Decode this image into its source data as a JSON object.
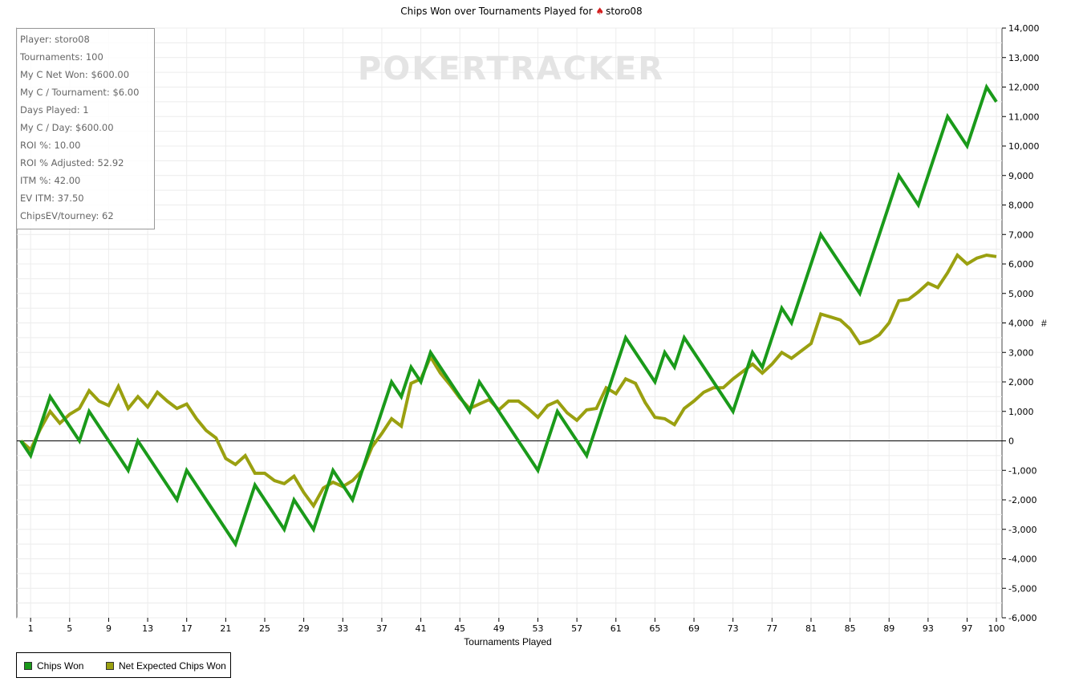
{
  "title_text": "Chips Won over Tournaments Played for",
  "title_player": "storo08",
  "watermark": "POKERTRACKER",
  "stats": [
    "Player: storo08",
    "Tournaments: 100",
    "My C Net Won: $600.00",
    "My C / Tournament: $6.00",
    "Days Played: 1",
    "My C / Day: $600.00",
    "ROI %: 10.00",
    "ROI % Adjusted: 52.92",
    "ITM %: 42.00",
    "EV ITM: 37.50",
    "ChipsEV/tourney: 62"
  ],
  "legend": [
    {
      "label": "Chips Won",
      "color": "#1a9a1a"
    },
    {
      "label": "Net Expected Chips Won",
      "color": "#9aa010"
    }
  ],
  "chart_data": {
    "type": "line",
    "title": "Chips Won over Tournaments Played for storo08",
    "xlabel": "Tournaments Played",
    "ylabel": "#",
    "xlim": [
      0,
      100
    ],
    "ylim": [
      -6000,
      14000
    ],
    "x_ticks": [
      1,
      5,
      9,
      13,
      17,
      21,
      25,
      29,
      33,
      37,
      41,
      45,
      49,
      53,
      57,
      61,
      65,
      69,
      73,
      77,
      81,
      85,
      89,
      93,
      97,
      100
    ],
    "y_ticks": [
      -6000,
      -5000,
      -4000,
      -3000,
      -2000,
      -1000,
      0,
      1000,
      2000,
      3000,
      4000,
      5000,
      6000,
      7000,
      8000,
      9000,
      10000,
      11000,
      12000,
      13000,
      14000
    ],
    "y_tick_labels": [
      "-6,000",
      "-5,000",
      "-4,000",
      "-3,000",
      "-2,000",
      "-1,000",
      "0",
      "1,000",
      "2,000",
      "3,000",
      "4,000",
      "5,000",
      "6,000",
      "7,000",
      "8,000",
      "9,000",
      "10,000",
      "11,000",
      "12,000",
      "13,000",
      "14,000"
    ],
    "grid": true,
    "legend_position": "bottom-left",
    "series": [
      {
        "name": "Chips Won",
        "color": "#1a9a1a",
        "points": [
          [
            0,
            0
          ],
          [
            1,
            -500
          ],
          [
            3,
            1500
          ],
          [
            6,
            0
          ],
          [
            7,
            1000
          ],
          [
            11,
            -1000
          ],
          [
            12,
            0
          ],
          [
            16,
            -2000
          ],
          [
            17,
            -1000
          ],
          [
            22,
            -3500
          ],
          [
            24,
            -1500
          ],
          [
            27,
            -3000
          ],
          [
            28,
            -2000
          ],
          [
            30,
            -3000
          ],
          [
            32,
            -1000
          ],
          [
            33,
            -1500
          ],
          [
            34,
            -2000
          ],
          [
            38,
            2000
          ],
          [
            39,
            1500
          ],
          [
            40,
            2500
          ],
          [
            41,
            2000
          ],
          [
            42,
            3000
          ],
          [
            46,
            1000
          ],
          [
            47,
            2000
          ],
          [
            53,
            -1000
          ],
          [
            55,
            1000
          ],
          [
            58,
            -500
          ],
          [
            62,
            3500
          ],
          [
            65,
            2000
          ],
          [
            66,
            3000
          ],
          [
            67,
            2500
          ],
          [
            68,
            3500
          ],
          [
            73,
            1000
          ],
          [
            75,
            3000
          ],
          [
            76,
            2500
          ],
          [
            78,
            4500
          ],
          [
            79,
            4000
          ],
          [
            82,
            7000
          ],
          [
            86,
            5000
          ],
          [
            90,
            9000
          ],
          [
            92,
            8000
          ],
          [
            95,
            11000
          ],
          [
            97,
            10000
          ],
          [
            99,
            12000
          ],
          [
            100,
            11500
          ]
        ]
      },
      {
        "name": "Net Expected Chips Won",
        "color": "#9aa010",
        "points": [
          [
            0,
            0
          ],
          [
            1,
            -300
          ],
          [
            2,
            400
          ],
          [
            3,
            1000
          ],
          [
            4,
            600
          ],
          [
            5,
            900
          ],
          [
            6,
            1100
          ],
          [
            7,
            1700
          ],
          [
            8,
            1350
          ],
          [
            9,
            1200
          ],
          [
            10,
            1850
          ],
          [
            11,
            1100
          ],
          [
            12,
            1500
          ],
          [
            13,
            1150
          ],
          [
            14,
            1650
          ],
          [
            15,
            1350
          ],
          [
            16,
            1100
          ],
          [
            17,
            1250
          ],
          [
            18,
            750
          ],
          [
            19,
            350
          ],
          [
            20,
            100
          ],
          [
            21,
            -600
          ],
          [
            22,
            -800
          ],
          [
            23,
            -500
          ],
          [
            24,
            -1100
          ],
          [
            25,
            -1100
          ],
          [
            26,
            -1350
          ],
          [
            27,
            -1450
          ],
          [
            28,
            -1200
          ],
          [
            29,
            -1750
          ],
          [
            30,
            -2200
          ],
          [
            31,
            -1600
          ],
          [
            32,
            -1400
          ],
          [
            33,
            -1550
          ],
          [
            34,
            -1350
          ],
          [
            35,
            -1000
          ],
          [
            36,
            -200
          ],
          [
            37,
            250
          ],
          [
            38,
            750
          ],
          [
            39,
            500
          ],
          [
            40,
            1950
          ],
          [
            41,
            2100
          ],
          [
            42,
            2850
          ],
          [
            43,
            2300
          ],
          [
            44,
            1900
          ],
          [
            45,
            1450
          ],
          [
            46,
            1100
          ],
          [
            47,
            1250
          ],
          [
            48,
            1400
          ],
          [
            49,
            1050
          ],
          [
            50,
            1350
          ],
          [
            51,
            1350
          ],
          [
            52,
            1100
          ],
          [
            53,
            800
          ],
          [
            54,
            1200
          ],
          [
            55,
            1350
          ],
          [
            56,
            950
          ],
          [
            57,
            700
          ],
          [
            58,
            1050
          ],
          [
            59,
            1100
          ],
          [
            60,
            1800
          ],
          [
            61,
            1600
          ],
          [
            62,
            2100
          ],
          [
            63,
            1950
          ],
          [
            64,
            1300
          ],
          [
            65,
            800
          ],
          [
            66,
            750
          ],
          [
            67,
            550
          ],
          [
            68,
            1100
          ],
          [
            69,
            1350
          ],
          [
            70,
            1650
          ],
          [
            71,
            1800
          ],
          [
            72,
            1800
          ],
          [
            73,
            2100
          ],
          [
            74,
            2350
          ],
          [
            75,
            2600
          ],
          [
            76,
            2300
          ],
          [
            77,
            2600
          ],
          [
            78,
            3000
          ],
          [
            79,
            2800
          ],
          [
            80,
            3050
          ],
          [
            81,
            3300
          ],
          [
            82,
            4300
          ],
          [
            83,
            4200
          ],
          [
            84,
            4100
          ],
          [
            85,
            3800
          ],
          [
            86,
            3300
          ],
          [
            87,
            3400
          ],
          [
            88,
            3600
          ],
          [
            89,
            4000
          ],
          [
            90,
            4750
          ],
          [
            91,
            4800
          ],
          [
            92,
            5050
          ],
          [
            93,
            5350
          ],
          [
            94,
            5200
          ],
          [
            95,
            5700
          ],
          [
            96,
            6300
          ],
          [
            97,
            6000
          ],
          [
            98,
            6200
          ],
          [
            99,
            6300
          ],
          [
            100,
            6250
          ]
        ]
      }
    ]
  }
}
